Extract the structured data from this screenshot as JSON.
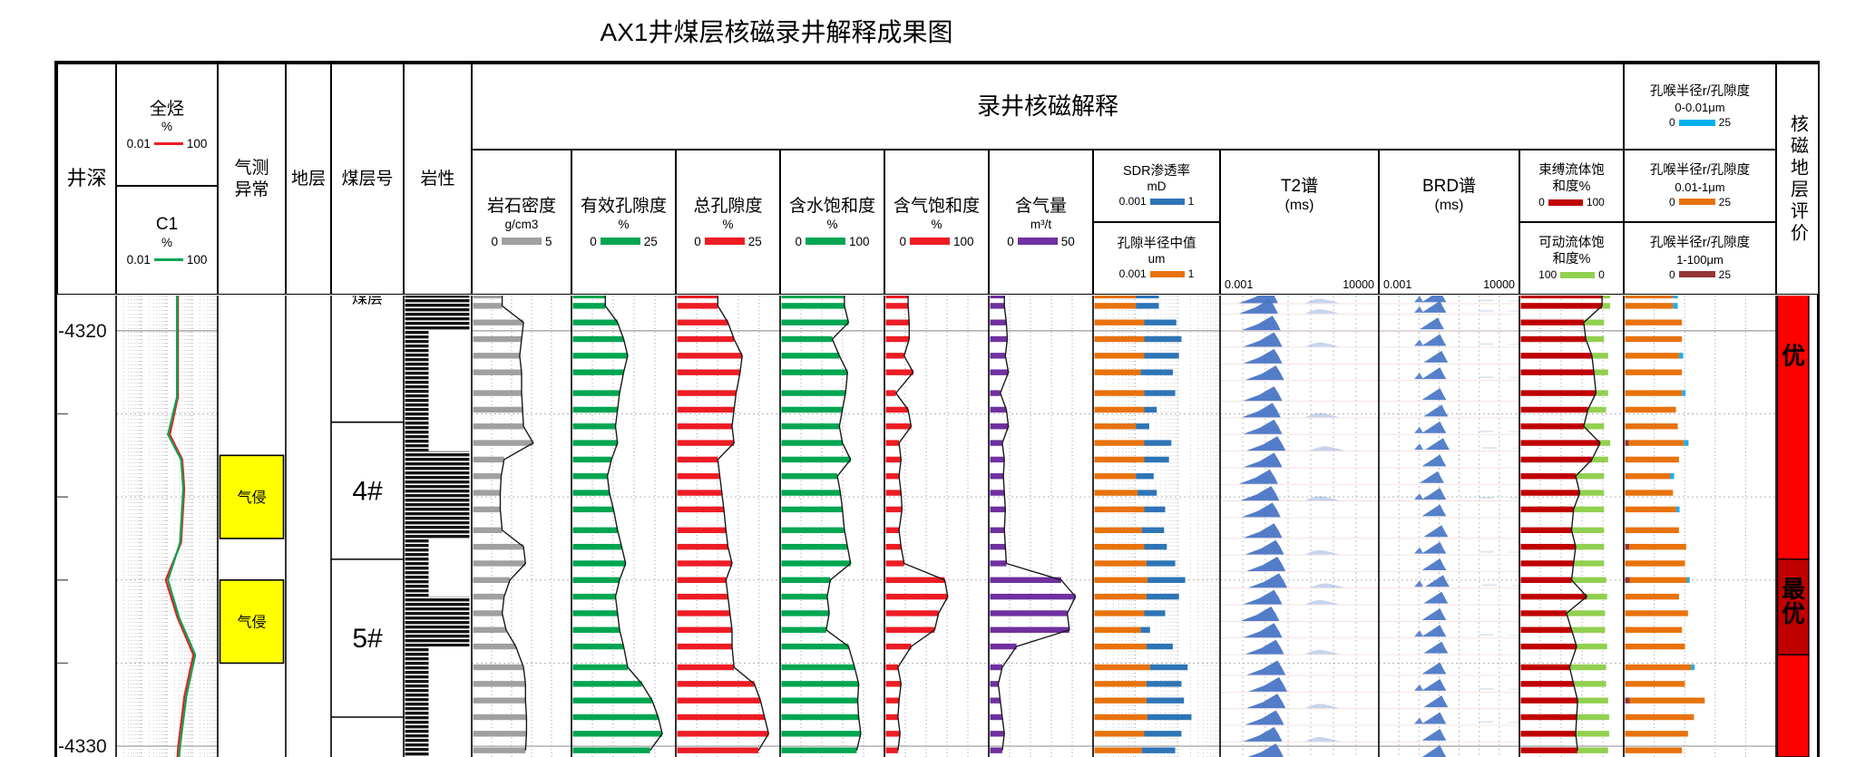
{
  "title": "AX1井煤层核磁录井解释成果图",
  "header": {
    "depth_label": "井深",
    "total_hc": {
      "title": "全烃",
      "unit": "%",
      "min": "0.01",
      "max": "100",
      "color": "#ED1C24"
    },
    "c1": {
      "title": "C1",
      "unit": "%",
      "min": "0.01",
      "max": "100",
      "color": "#00A651"
    },
    "gas_anomaly_label": "气测\n异常",
    "stratum_label": "地层",
    "coal_seam_label": "煤层号",
    "lithology_label": "岩性",
    "nmr_group_label": "录井核磁解释",
    "density": {
      "title": "岩石密度",
      "unit": "g/cm3",
      "min": "0",
      "max": "5",
      "color": "#A0A0A0"
    },
    "eff_porosity": {
      "title": "有效孔隙度",
      "unit": "%",
      "min": "0",
      "max": "25",
      "color": "#00A651"
    },
    "total_porosity": {
      "title": "总孔隙度",
      "unit": "%",
      "min": "0",
      "max": "25",
      "color": "#ED1C24"
    },
    "water_sat": {
      "title": "含水饱和度",
      "unit": "%",
      "min": "0",
      "max": "100",
      "color": "#00A651"
    },
    "gas_sat": {
      "title": "含气饱和度",
      "unit": "%",
      "min": "0",
      "max": "100",
      "color": "#ED1C24"
    },
    "gas_content": {
      "title": "含气量",
      "unit": "m³/t",
      "min": "0",
      "max": "50",
      "color": "#7030A0"
    },
    "sdr_perm": {
      "title": "SDR渗透率",
      "unit": "mD",
      "min": "0.001",
      "max": "1",
      "color": "#2E75B6"
    },
    "pore_radius_median": {
      "title": "孔隙半径中值",
      "unit": "um",
      "min": "0.001",
      "max": "1",
      "color": "#E8720C"
    },
    "t2": {
      "title": "T2谱",
      "unit": "(ms)",
      "min": "0.001",
      "max": "10000"
    },
    "brd": {
      "title": "BRD谱",
      "unit": "(ms)",
      "min": "0.001",
      "max": "10000"
    },
    "bound_fluid": {
      "title": "束缚流体饱\n和度%",
      "min": "0",
      "max": "100",
      "color": "#C00000"
    },
    "movable_fluid": {
      "title": "可动流体饱\n和度%",
      "min": "100",
      "max": "0",
      "color": "#92D050"
    },
    "pt1": {
      "title": "孔喉半径r/孔隙度",
      "range": "0-0.01μm",
      "min": "0",
      "max": "25",
      "color": "#00B0F0"
    },
    "pt2": {
      "title": "孔喉半径r/孔隙度",
      "range": "0.01-1μm",
      "min": "0",
      "max": "25",
      "color": "#E8720C"
    },
    "pt3": {
      "title": "孔喉半径r/孔隙度",
      "range": "1-100μm",
      "min": "0",
      "max": "25",
      "color": "#943634"
    },
    "eval_label": "核磁地层评价"
  },
  "annotations": {
    "gas_invasion_label": "气侵",
    "partial_top_seam_label": "煤层",
    "depth_tick_labels": [
      "-4320",
      "-4330"
    ]
  },
  "chart_data": {
    "type": "well-log-composite",
    "depth_unit": "m",
    "depth_range": [
      4319.13,
      4330.26
    ],
    "depth_major_ticks": [
      4320,
      4330
    ],
    "depth_major_labels": [
      "-4320",
      "-4330"
    ],
    "depth_minor_ticks": [
      4322,
      4324,
      4326,
      4328
    ],
    "track_scales": {
      "total_hc_pct": {
        "type": "log",
        "min": 0.01,
        "max": 100
      },
      "c1_pct": {
        "type": "log",
        "min": 0.01,
        "max": 100
      },
      "density_g_cm3": {
        "type": "linear",
        "min": 0,
        "max": 5
      },
      "eff_porosity_pct": {
        "type": "linear",
        "min": 0,
        "max": 25
      },
      "total_porosity_pct": {
        "type": "linear",
        "min": 0,
        "max": 25
      },
      "water_sat_pct": {
        "type": "linear",
        "min": 0,
        "max": 100
      },
      "gas_sat_pct": {
        "type": "linear",
        "min": 0,
        "max": 100
      },
      "gas_content_m3t": {
        "type": "linear",
        "min": 0,
        "max": 50
      },
      "sdr_perm_mD": {
        "type": "log",
        "min": 0.001,
        "max": 1
      },
      "pore_radius_median_um": {
        "type": "log",
        "min": 0.001,
        "max": 1
      },
      "t2_ms": {
        "type": "log",
        "min": 0.001,
        "max": 10000
      },
      "brd_ms": {
        "type": "log",
        "min": 0.001,
        "max": 10000
      },
      "bound_fluid_pct": {
        "type": "linear",
        "min": 0,
        "max": 100
      },
      "movable_fluid_pct": {
        "type": "linear-reversed",
        "min": 100,
        "max": 0
      },
      "pore_throat_pct": {
        "type": "linear",
        "min": 0,
        "max": 25
      }
    },
    "sample_depths": [
      4319.15,
      4319.4,
      4319.8,
      4320.2,
      4320.6,
      4321.0,
      4321.5,
      4321.9,
      4322.3,
      4322.7,
      4323.1,
      4323.5,
      4323.9,
      4324.3,
      4324.8,
      4325.2,
      4325.6,
      4326.0,
      4326.4,
      4326.8,
      4327.2,
      4327.6,
      4328.1,
      4328.5,
      4328.9,
      4329.3,
      4329.7,
      4330.1
    ],
    "density": [
      1.5,
      1.5,
      2.6,
      2.5,
      2.4,
      2.5,
      2.5,
      2.55,
      2.6,
      3.1,
      1.6,
      1.45,
      1.4,
      1.4,
      1.5,
      2.6,
      2.7,
      1.9,
      1.6,
      1.5,
      1.7,
      2.2,
      2.6,
      2.7,
      2.7,
      2.75,
      2.75,
      2.7
    ],
    "eff_porosity": [
      8,
      8,
      11,
      12.5,
      13.5,
      12.5,
      11.5,
      11,
      10.5,
      11,
      9.5,
      8.5,
      9,
      10,
      11,
      12,
      13,
      11.5,
      10.5,
      11,
      11.5,
      12.5,
      13.5,
      17,
      19.5,
      21,
      22,
      19
    ],
    "total_porosity": [
      10,
      10,
      12.5,
      14,
      16,
      15.5,
      14.5,
      14,
      13.5,
      14,
      10,
      10.5,
      11,
      11.5,
      12,
      12.5,
      13.5,
      12,
      12.5,
      13,
      13.5,
      13.5,
      14,
      19,
      20.5,
      21.5,
      22.5,
      20
    ],
    "water_saturation": [
      62,
      62,
      66,
      50,
      57,
      65,
      63,
      60,
      57,
      60,
      68,
      55,
      58,
      60,
      62,
      65,
      68,
      48,
      45,
      47,
      44,
      66,
      72,
      76,
      75,
      76,
      78,
      74
    ],
    "gas_saturation": [
      22,
      22,
      23,
      23,
      18,
      27,
      10,
      22,
      25,
      13,
      15,
      13,
      15,
      16,
      13,
      15,
      18,
      58,
      61,
      52,
      48,
      25,
      12,
      15,
      13,
      12,
      14,
      12
    ],
    "gas_content": [
      7,
      7,
      8,
      8.5,
      7.5,
      9,
      5,
      8,
      9,
      6,
      7,
      6.5,
      7,
      7.5,
      7,
      7.5,
      8,
      35,
      42,
      38,
      39,
      13,
      6,
      4,
      5,
      6,
      7,
      6
    ],
    "median_pore_radius_um": [
      0.01,
      0.01,
      0.016,
      0.016,
      0.016,
      0.013,
      0.016,
      0.016,
      0.01,
      0.016,
      0.016,
      0.01,
      0.011,
      0.016,
      0.014,
      0.016,
      0.018,
      0.019,
      0.018,
      0.016,
      0.013,
      0.018,
      0.022,
      0.018,
      0.018,
      0.019,
      0.016,
      0.014
    ],
    "sdr_permeability_mD": [
      0.036,
      0.036,
      0.095,
      0.126,
      0.11,
      0.078,
      0.089,
      0.032,
      0.021,
      0.072,
      0.063,
      0.027,
      0.032,
      0.051,
      0.048,
      0.056,
      0.089,
      0.155,
      0.11,
      0.051,
      0.022,
      0.078,
      0.178,
      0.126,
      0.145,
      0.22,
      0.126,
      0.089
    ],
    "bound_fluid_sat": [
      80,
      80,
      62,
      64,
      70,
      72,
      74,
      66,
      62,
      78,
      70,
      54,
      58,
      52,
      50,
      54,
      52,
      50,
      65,
      45,
      50,
      55,
      48,
      52,
      56,
      55,
      54,
      56
    ],
    "movable_fluid_sat": [
      8,
      8,
      20,
      18,
      16,
      14,
      12,
      18,
      20,
      10,
      16,
      28,
      24,
      30,
      32,
      28,
      30,
      34,
      20,
      38,
      33,
      30,
      36,
      32,
      30,
      32,
      33,
      30
    ],
    "pore_throat_0p01_1um": [
      8,
      8,
      9.5,
      9.5,
      9,
      9.5,
      9.5,
      8.5,
      8.8,
      9.2,
      9,
      7.5,
      8,
      8.5,
      9,
      9.5,
      10,
      9.5,
      9,
      10.5,
      9.5,
      10,
      11,
      10,
      12.5,
      11.5,
      10.5,
      9.5
    ],
    "pore_throat_0_0p01um": [
      0.8,
      0.8,
      0,
      0,
      0.7,
      0,
      0.6,
      0,
      0,
      0.8,
      0,
      0.7,
      0,
      0.6,
      0,
      0,
      0,
      0.5,
      0,
      0,
      0,
      0,
      0.6,
      0,
      0,
      0,
      0,
      0
    ],
    "pore_throat_1_100um": [
      0,
      0,
      0,
      0,
      0,
      0,
      0,
      0,
      0,
      0.6,
      0,
      0,
      0,
      0,
      0,
      0.7,
      0,
      0.8,
      0,
      0,
      0,
      0,
      0,
      0,
      0.8,
      0,
      0,
      0
    ],
    "t2_peak_ms": [
      0.13,
      0.13,
      0.17,
      0.2,
      0.2,
      0.24,
      0.2,
      0.17,
      0.2,
      0.28,
      0.2,
      0.13,
      0.15,
      0.17,
      0.2,
      0.24,
      0.28,
      0.33,
      0.2,
      0.15,
      0.2,
      0.24,
      0.28,
      0.33,
      0.28,
      0.24,
      0.2,
      0.24
    ],
    "t2_secondary_ms": [
      35,
      35,
      0,
      35,
      0,
      0,
      0,
      35,
      0,
      60,
      0,
      0,
      35,
      0,
      0,
      35,
      0,
      60,
      35,
      0,
      0,
      35,
      0,
      0,
      35,
      0,
      35,
      0
    ],
    "brd_peak_ms": [
      0.9,
      0.9,
      0.7,
      0.9,
      1.1,
      0.9,
      0.9,
      1.1,
      0.9,
      1.3,
      0.9,
      0.7,
      0.9,
      0.9,
      1.1,
      0.9,
      0.9,
      1.3,
      1.1,
      0.9,
      0.9,
      1.1,
      0.9,
      0.9,
      1.1,
      0.9,
      0.9,
      0.9
    ],
    "brd_pre_ms": [
      0.12,
      0.12,
      0,
      0.12,
      0,
      0.12,
      0,
      0,
      0.12,
      0.12,
      0,
      0,
      0.12,
      0,
      0,
      0.12,
      0,
      0.12,
      0,
      0,
      0.12,
      0,
      0,
      0.12,
      0,
      0.12,
      0,
      0
    ],
    "total_hc_curve": [
      [
        4319.1,
        2.7
      ],
      [
        4321.6,
        2.7
      ],
      [
        4322.5,
        1.3
      ],
      [
        4323.1,
        4.0
      ],
      [
        4323.8,
        4.8
      ],
      [
        4325.1,
        3.6
      ],
      [
        4326.0,
        0.9
      ],
      [
        4326.9,
        2.6
      ],
      [
        4327.8,
        11
      ],
      [
        4328.8,
        4.9
      ],
      [
        4330.0,
        2.8
      ],
      [
        4330.3,
        2.6
      ]
    ],
    "c1_curve": [
      [
        4319.1,
        2.5
      ],
      [
        4321.6,
        2.5
      ],
      [
        4322.5,
        1.1
      ],
      [
        4323.1,
        3.6
      ],
      [
        4323.8,
        4.4
      ],
      [
        4325.1,
        3.3
      ],
      [
        4326.0,
        1.1
      ],
      [
        4326.9,
        3.0
      ],
      [
        4327.8,
        13
      ],
      [
        4328.8,
        5.8
      ],
      [
        4330.0,
        3.3
      ],
      [
        4330.3,
        3.0
      ]
    ],
    "coal_seams": [
      {
        "from": 4319.13,
        "to": 4322.2,
        "label": "煤层",
        "partial": true
      },
      {
        "from": 4322.2,
        "to": 4325.5,
        "label": "4#"
      },
      {
        "from": 4325.5,
        "to": 4329.3,
        "label": "5#"
      },
      {
        "from": 4329.3,
        "to": 4330.26,
        "label": ""
      }
    ],
    "lithology": [
      {
        "from": 4319.13,
        "to": 4320.0,
        "width": "full"
      },
      {
        "from": 4320.0,
        "to": 4322.9,
        "width": "narrow"
      },
      {
        "from": 4322.9,
        "to": 4325.0,
        "width": "full"
      },
      {
        "from": 4325.0,
        "to": 4326.4,
        "width": "narrow"
      },
      {
        "from": 4326.4,
        "to": 4327.6,
        "width": "full"
      },
      {
        "from": 4327.6,
        "to": 4330.26,
        "width": "narrow"
      }
    ],
    "gas_anomaly": [
      {
        "from": 4323.0,
        "to": 4325.0,
        "label": "气侵"
      },
      {
        "from": 4326.0,
        "to": 4328.0,
        "label": "气侵"
      }
    ],
    "evaluation": [
      {
        "from": 4319.13,
        "to": 4325.5,
        "label": "优",
        "label_depth": 4320.8,
        "color": "#FF0000"
      },
      {
        "from": 4325.5,
        "to": 4327.8,
        "label": "最优",
        "label_depth": 4326.7,
        "color": "#C00000"
      },
      {
        "from": 4327.8,
        "to": 4330.26,
        "label": "",
        "label_depth": 4329.0,
        "color": "#FF0000"
      }
    ]
  }
}
